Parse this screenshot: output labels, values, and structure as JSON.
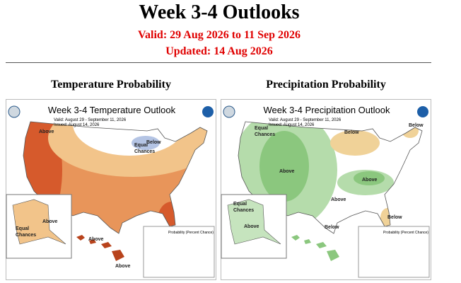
{
  "header": {
    "title": "Week 3-4 Outlooks",
    "valid": "Valid: 29 Aug 2026 to 11 Sep 2026",
    "updated": "Updated: 14 Aug 2026"
  },
  "panels": [
    {
      "heading": "Temperature Probability",
      "map_title": "Week 3-4 Temperature Outlook",
      "valid": "Valid:   August 29 - September 11, 2026",
      "issued": "Issued:  August 14, 2026",
      "labels": [
        "Above",
        "Equal",
        "Chances",
        "Below",
        "Above",
        "Equal",
        "Chances",
        "Above",
        "Above"
      ],
      "legend_title": "Probability (Percent Chance)"
    },
    {
      "heading": "Precipitation Probability",
      "map_title": "Week 3-4 Precipitation Outlook",
      "valid": "Valid:   August 29 - September 11, 2026",
      "issued": "Issued:  August 14, 2026",
      "labels": [
        "Equal",
        "Chances",
        "Below",
        "Below",
        "Above",
        "Above",
        "Above",
        "Below",
        "Below",
        "Equal",
        "Chances",
        "Above"
      ],
      "legend_title": "Probability (Percent Chance)"
    }
  ]
}
